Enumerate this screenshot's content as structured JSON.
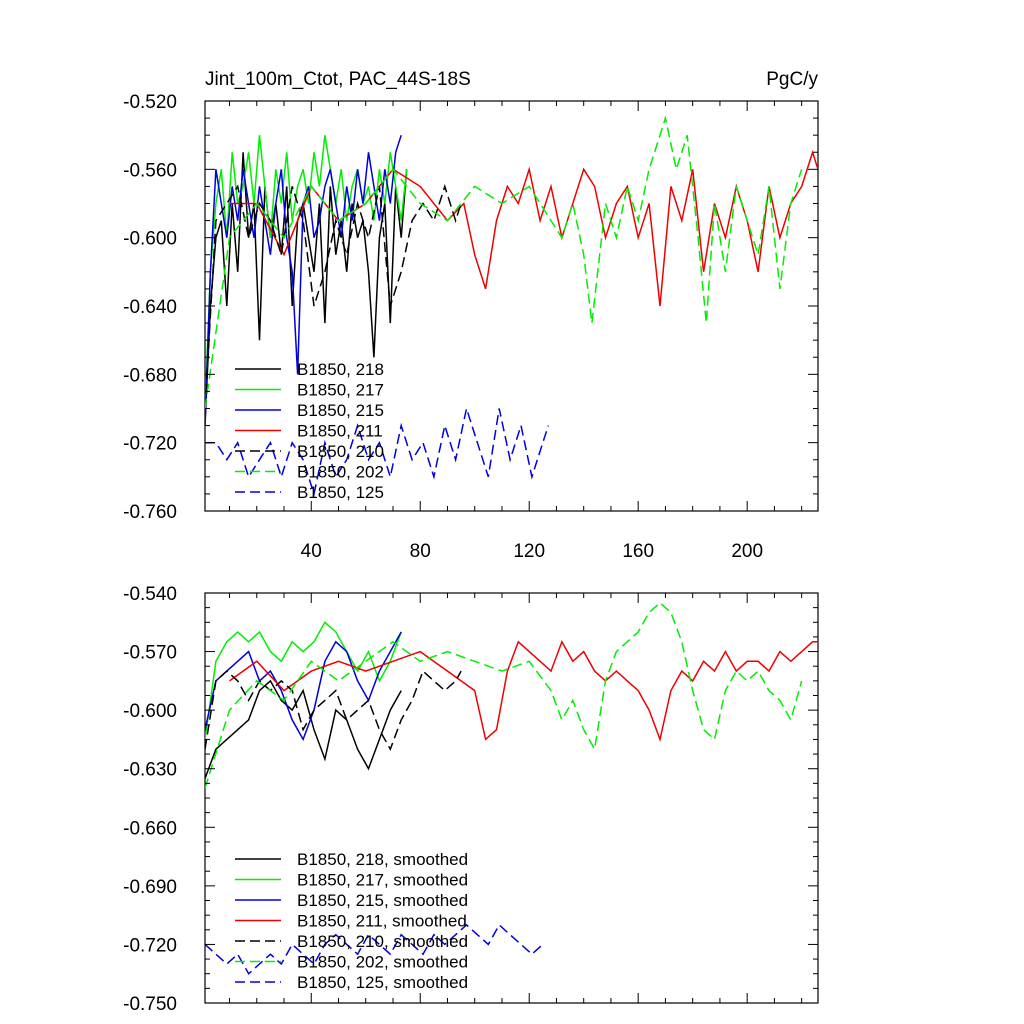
{
  "chart_data": [
    {
      "type": "line",
      "title": "Jint_100m_Ctot, PAC_44S-18S",
      "units": "PgC/y",
      "xlabel": "",
      "ylabel": "",
      "xlim": [
        1,
        226
      ],
      "ylim": [
        -0.76,
        -0.52
      ],
      "xticks": [
        40,
        80,
        120,
        160,
        200
      ],
      "yticks": [
        -0.52,
        -0.56,
        -0.6,
        -0.64,
        -0.68,
        -0.72,
        -0.76
      ],
      "ytick_labels": [
        "-0.520",
        "-0.560",
        "-0.600",
        "-0.640",
        "-0.680",
        "-0.720",
        "-0.760"
      ],
      "xtick_labels": [
        "40",
        "80",
        "120",
        "160",
        "200"
      ],
      "grid": false,
      "legend_position": "bottom-left",
      "series": [
        {
          "name": "B1850, 218",
          "color": "#000000",
          "dash": "solid",
          "x": [
            1,
            3,
            5,
            7,
            9,
            11,
            13,
            15,
            17,
            19,
            21,
            23,
            25,
            27,
            29,
            31,
            33,
            35,
            37,
            39,
            41,
            43,
            45,
            47,
            49,
            51,
            53,
            55,
            57,
            59,
            61,
            63,
            65,
            67,
            69,
            71,
            73,
            75
          ],
          "values": [
            -0.71,
            -0.64,
            -0.6,
            -0.59,
            -0.64,
            -0.58,
            -0.62,
            -0.55,
            -0.6,
            -0.58,
            -0.66,
            -0.57,
            -0.6,
            -0.58,
            -0.61,
            -0.57,
            -0.64,
            -0.59,
            -0.58,
            -0.6,
            -0.62,
            -0.58,
            -0.65,
            -0.57,
            -0.61,
            -0.59,
            -0.62,
            -0.58,
            -0.6,
            -0.59,
            -0.62,
            -0.67,
            -0.6,
            -0.58,
            -0.65,
            -0.57,
            -0.6,
            -0.56
          ]
        },
        {
          "name": "B1850, 217",
          "color": "#00ee00",
          "dash": "solid",
          "x": [
            1,
            3,
            5,
            7,
            9,
            11,
            13,
            15,
            17,
            19,
            21,
            23,
            25,
            27,
            29,
            31,
            33,
            35,
            37,
            39,
            41,
            43,
            45,
            47,
            49,
            51,
            53,
            55,
            57,
            59,
            61,
            63,
            65,
            67,
            69,
            71,
            73,
            75
          ],
          "values": [
            -0.7,
            -0.62,
            -0.58,
            -0.56,
            -0.6,
            -0.55,
            -0.58,
            -0.57,
            -0.55,
            -0.58,
            -0.54,
            -0.57,
            -0.6,
            -0.56,
            -0.58,
            -0.55,
            -0.59,
            -0.57,
            -0.56,
            -0.58,
            -0.55,
            -0.57,
            -0.54,
            -0.56,
            -0.58,
            -0.56,
            -0.59,
            -0.57,
            -0.56,
            -0.58,
            -0.57,
            -0.59,
            -0.56,
            -0.58,
            -0.55,
            -0.57,
            -0.59,
            -0.56
          ]
        },
        {
          "name": "B1850, 215",
          "color": "#0000dd",
          "dash": "solid",
          "x": [
            1,
            3,
            5,
            7,
            9,
            11,
            13,
            15,
            17,
            19,
            21,
            23,
            25,
            27,
            29,
            31,
            33,
            35,
            37,
            39,
            41,
            43,
            45,
            47,
            49,
            51,
            53,
            55,
            57,
            59,
            61,
            63,
            65,
            67,
            69,
            71,
            73
          ],
          "values": [
            -0.71,
            -0.62,
            -0.56,
            -0.58,
            -0.6,
            -0.57,
            -0.59,
            -0.56,
            -0.58,
            -0.6,
            -0.57,
            -0.59,
            -0.61,
            -0.58,
            -0.56,
            -0.6,
            -0.62,
            -0.68,
            -0.58,
            -0.57,
            -0.6,
            -0.59,
            -0.57,
            -0.56,
            -0.58,
            -0.6,
            -0.57,
            -0.59,
            -0.56,
            -0.58,
            -0.55,
            -0.57,
            -0.59,
            -0.56,
            -0.58,
            -0.55,
            -0.54
          ]
        },
        {
          "name": "B1850, 211",
          "color": "#ee0000",
          "dash": "solid",
          "x": [
            10,
            20,
            30,
            40,
            50,
            60,
            70,
            80,
            90,
            96,
            100,
            104,
            108,
            112,
            116,
            120,
            124,
            128,
            132,
            136,
            140,
            144,
            148,
            152,
            156,
            160,
            164,
            168,
            172,
            176,
            180,
            184,
            188,
            192,
            196,
            200,
            204,
            208,
            212,
            216,
            220,
            224,
            226
          ],
          "values": [
            -0.58,
            -0.58,
            -0.61,
            -0.57,
            -0.59,
            -0.58,
            -0.56,
            -0.57,
            -0.59,
            -0.58,
            -0.61,
            -0.63,
            -0.59,
            -0.57,
            -0.58,
            -0.56,
            -0.59,
            -0.57,
            -0.6,
            -0.58,
            -0.56,
            -0.57,
            -0.6,
            -0.58,
            -0.57,
            -0.6,
            -0.58,
            -0.64,
            -0.57,
            -0.59,
            -0.56,
            -0.62,
            -0.58,
            -0.6,
            -0.57,
            -0.59,
            -0.62,
            -0.57,
            -0.6,
            -0.58,
            -0.57,
            -0.55,
            -0.56
          ]
        },
        {
          "name": "B1850, 210",
          "color": "#000000",
          "dash": "dashed",
          "x": [
            1,
            5,
            9,
            13,
            17,
            21,
            25,
            29,
            33,
            37,
            41,
            45,
            49,
            53,
            57,
            61,
            65,
            69,
            73,
            77,
            81,
            85,
            89,
            93,
            95
          ],
          "values": [
            -0.7,
            -0.59,
            -0.58,
            -0.57,
            -0.6,
            -0.58,
            -0.59,
            -0.61,
            -0.57,
            -0.59,
            -0.64,
            -0.62,
            -0.59,
            -0.61,
            -0.58,
            -0.6,
            -0.57,
            -0.64,
            -0.62,
            -0.59,
            -0.58,
            -0.59,
            -0.57,
            -0.59,
            -0.58
          ]
        },
        {
          "name": "B1850, 202",
          "color": "#00ee00",
          "dash": "dashed",
          "x": [
            1,
            10,
            20,
            30,
            40,
            50,
            60,
            70,
            80,
            90,
            100,
            110,
            120,
            128,
            132,
            136,
            140,
            143,
            148,
            152,
            156,
            160,
            164,
            168,
            170,
            174,
            178,
            182,
            185,
            188,
            192,
            196,
            200,
            204,
            208,
            212,
            216,
            220
          ],
          "values": [
            -0.7,
            -0.6,
            -0.58,
            -0.6,
            -0.57,
            -0.59,
            -0.58,
            -0.56,
            -0.58,
            -0.59,
            -0.57,
            -0.58,
            -0.57,
            -0.59,
            -0.6,
            -0.58,
            -0.61,
            -0.65,
            -0.58,
            -0.6,
            -0.57,
            -0.59,
            -0.56,
            -0.54,
            -0.53,
            -0.56,
            -0.54,
            -0.6,
            -0.65,
            -0.58,
            -0.62,
            -0.57,
            -0.59,
            -0.61,
            -0.57,
            -0.63,
            -0.58,
            -0.56
          ]
        },
        {
          "name": "B1850, 125",
          "color": "#0000dd",
          "dash": "dashed",
          "x": [
            1,
            5,
            9,
            13,
            17,
            21,
            25,
            29,
            33,
            37,
            41,
            45,
            49,
            53,
            57,
            61,
            65,
            69,
            73,
            77,
            81,
            85,
            89,
            93,
            97,
            101,
            105,
            109,
            113,
            117,
            121,
            125,
            127
          ],
          "values": [
            -0.72,
            -0.72,
            -0.73,
            -0.72,
            -0.74,
            -0.73,
            -0.72,
            -0.74,
            -0.72,
            -0.73,
            -0.75,
            -0.72,
            -0.74,
            -0.73,
            -0.71,
            -0.73,
            -0.72,
            -0.74,
            -0.71,
            -0.73,
            -0.72,
            -0.74,
            -0.71,
            -0.73,
            -0.7,
            -0.72,
            -0.74,
            -0.7,
            -0.73,
            -0.71,
            -0.74,
            -0.72,
            -0.71
          ]
        }
      ]
    },
    {
      "type": "line",
      "title": "",
      "xlabel": "",
      "ylabel": "",
      "xlim": [
        1,
        226
      ],
      "ylim": [
        -0.75,
        -0.54
      ],
      "xticks": [
        40,
        80,
        120,
        160,
        200
      ],
      "yticks": [
        -0.54,
        -0.57,
        -0.6,
        -0.63,
        -0.66,
        -0.69,
        -0.72,
        -0.75
      ],
      "ytick_labels": [
        "-0.540",
        "-0.570",
        "-0.600",
        "-0.630",
        "-0.660",
        "-0.690",
        "-0.720",
        "-0.750"
      ],
      "grid": false,
      "legend_position": "bottom-left",
      "series": [
        {
          "name": "B1850, 218, smoothed",
          "color": "#000000",
          "dash": "solid",
          "x": [
            1,
            5,
            9,
            13,
            17,
            21,
            25,
            29,
            33,
            37,
            41,
            45,
            49,
            53,
            57,
            61,
            65,
            69,
            73
          ],
          "values": [
            -0.635,
            -0.62,
            -0.615,
            -0.61,
            -0.605,
            -0.59,
            -0.585,
            -0.595,
            -0.6,
            -0.59,
            -0.61,
            -0.625,
            -0.6,
            -0.605,
            -0.62,
            -0.63,
            -0.615,
            -0.6,
            -0.59
          ]
        },
        {
          "name": "B1850, 217, smoothed",
          "color": "#00ee00",
          "dash": "solid",
          "x": [
            1,
            5,
            9,
            13,
            17,
            21,
            25,
            29,
            33,
            37,
            41,
            45,
            49,
            53,
            57,
            61,
            65,
            69,
            73
          ],
          "values": [
            -0.615,
            -0.575,
            -0.565,
            -0.56,
            -0.565,
            -0.56,
            -0.57,
            -0.575,
            -0.565,
            -0.57,
            -0.565,
            -0.555,
            -0.56,
            -0.57,
            -0.58,
            -0.57,
            -0.585,
            -0.575,
            -0.56
          ]
        },
        {
          "name": "B1850, 215, smoothed",
          "color": "#0000dd",
          "dash": "solid",
          "x": [
            1,
            5,
            9,
            13,
            17,
            21,
            25,
            29,
            33,
            37,
            41,
            45,
            49,
            53,
            57,
            61,
            65,
            69,
            73
          ],
          "values": [
            -0.61,
            -0.585,
            -0.58,
            -0.575,
            -0.57,
            -0.585,
            -0.58,
            -0.59,
            -0.605,
            -0.615,
            -0.6,
            -0.575,
            -0.565,
            -0.57,
            -0.585,
            -0.595,
            -0.58,
            -0.57,
            -0.56
          ]
        },
        {
          "name": "B1850, 211, smoothed",
          "color": "#ee0000",
          "dash": "solid",
          "x": [
            10,
            20,
            30,
            40,
            50,
            60,
            70,
            80,
            90,
            100,
            104,
            108,
            112,
            116,
            120,
            124,
            128,
            132,
            136,
            140,
            144,
            148,
            152,
            156,
            160,
            164,
            168,
            172,
            176,
            180,
            184,
            188,
            192,
            196,
            200,
            204,
            208,
            212,
            216,
            220,
            224,
            226
          ],
          "values": [
            -0.585,
            -0.575,
            -0.59,
            -0.58,
            -0.575,
            -0.58,
            -0.575,
            -0.57,
            -0.58,
            -0.59,
            -0.615,
            -0.61,
            -0.58,
            -0.565,
            -0.57,
            -0.575,
            -0.58,
            -0.565,
            -0.575,
            -0.57,
            -0.58,
            -0.585,
            -0.58,
            -0.585,
            -0.59,
            -0.6,
            -0.615,
            -0.59,
            -0.58,
            -0.585,
            -0.575,
            -0.58,
            -0.57,
            -0.58,
            -0.575,
            -0.575,
            -0.58,
            -0.57,
            -0.575,
            -0.57,
            -0.565,
            -0.565
          ]
        },
        {
          "name": "B1850, 210, smoothed",
          "color": "#000000",
          "dash": "dashed",
          "x": [
            1,
            5,
            9,
            13,
            17,
            21,
            25,
            29,
            33,
            37,
            41,
            45,
            49,
            53,
            57,
            61,
            65,
            69,
            73,
            77,
            81,
            85,
            89,
            93,
            95
          ],
          "values": [
            -0.62,
            -0.585,
            -0.58,
            -0.585,
            -0.595,
            -0.585,
            -0.59,
            -0.585,
            -0.59,
            -0.61,
            -0.6,
            -0.595,
            -0.59,
            -0.605,
            -0.6,
            -0.595,
            -0.61,
            -0.62,
            -0.605,
            -0.595,
            -0.58,
            -0.585,
            -0.59,
            -0.585,
            -0.58
          ]
        },
        {
          "name": "B1850, 202, smoothed",
          "color": "#00ee00",
          "dash": "dashed",
          "x": [
            1,
            10,
            20,
            30,
            40,
            50,
            60,
            70,
            80,
            90,
            100,
            110,
            120,
            128,
            132,
            136,
            140,
            144,
            148,
            152,
            156,
            160,
            164,
            168,
            172,
            176,
            180,
            184,
            188,
            192,
            196,
            200,
            204,
            208,
            212,
            216,
            220
          ],
          "values": [
            -0.64,
            -0.6,
            -0.585,
            -0.595,
            -0.575,
            -0.585,
            -0.575,
            -0.565,
            -0.575,
            -0.57,
            -0.575,
            -0.58,
            -0.575,
            -0.59,
            -0.605,
            -0.595,
            -0.61,
            -0.62,
            -0.585,
            -0.57,
            -0.565,
            -0.56,
            -0.55,
            -0.545,
            -0.55,
            -0.565,
            -0.59,
            -0.61,
            -0.615,
            -0.59,
            -0.58,
            -0.585,
            -0.58,
            -0.59,
            -0.595,
            -0.605,
            -0.585
          ]
        },
        {
          "name": "B1850, 125, smoothed",
          "color": "#0000dd",
          "dash": "dashed",
          "x": [
            1,
            5,
            9,
            13,
            17,
            21,
            25,
            29,
            33,
            37,
            41,
            45,
            49,
            53,
            57,
            61,
            65,
            69,
            73,
            77,
            81,
            85,
            89,
            93,
            97,
            101,
            105,
            109,
            113,
            117,
            121,
            125
          ],
          "values": [
            -0.72,
            -0.725,
            -0.73,
            -0.725,
            -0.735,
            -0.73,
            -0.725,
            -0.73,
            -0.72,
            -0.725,
            -0.73,
            -0.72,
            -0.715,
            -0.72,
            -0.725,
            -0.715,
            -0.72,
            -0.725,
            -0.715,
            -0.72,
            -0.725,
            -0.715,
            -0.72,
            -0.715,
            -0.71,
            -0.715,
            -0.72,
            -0.71,
            -0.715,
            -0.72,
            -0.725,
            -0.72
          ]
        }
      ]
    }
  ]
}
